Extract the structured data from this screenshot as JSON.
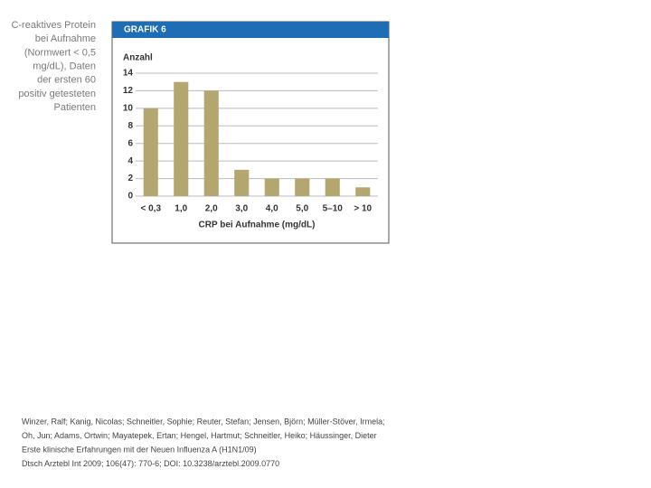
{
  "caption": [
    "C-reaktives Protein",
    "bei Aufnahme",
    "(Normwert < 0,5",
    "mg/dL), Daten",
    "der ersten 60",
    "positiv getesteten",
    "Patienten"
  ],
  "chart_data": {
    "type": "bar",
    "header": "GRAFIK 6",
    "ylabel": "Anzahl",
    "xlabel": "CRP bei Aufnahme (mg/dL)",
    "categories": [
      "< 0,3",
      "1,0",
      "2,0",
      "3,0",
      "4,0",
      "5,0",
      "5–10",
      "> 10"
    ],
    "values": [
      10,
      13,
      12,
      3,
      2,
      2,
      2,
      1
    ],
    "color": "#b3a66e",
    "ylim": [
      0,
      14
    ],
    "yticks": [
      0,
      2,
      4,
      6,
      8,
      10,
      12,
      14
    ],
    "grid": true
  },
  "citation": [
    "Winzer, Ralf; Kanig, Nicolas; Schneitler, Sophie; Reuter, Stefan; Jensen, Björn; Müller-Stöver, Irmela;",
    "Oh, Jun; Adams, Ortwin; Mayatepek, Ertan; Hengel, Hartmut; Schneitler, Heiko; Häussinger, Dieter",
    "Erste klinische Erfahrungen mit der Neuen Influenza A (H1N1/09)",
    "Dtsch Arztebl Int 2009; 106(47): 770-6; DOI: 10.3238/arztebl.2009.0770"
  ]
}
